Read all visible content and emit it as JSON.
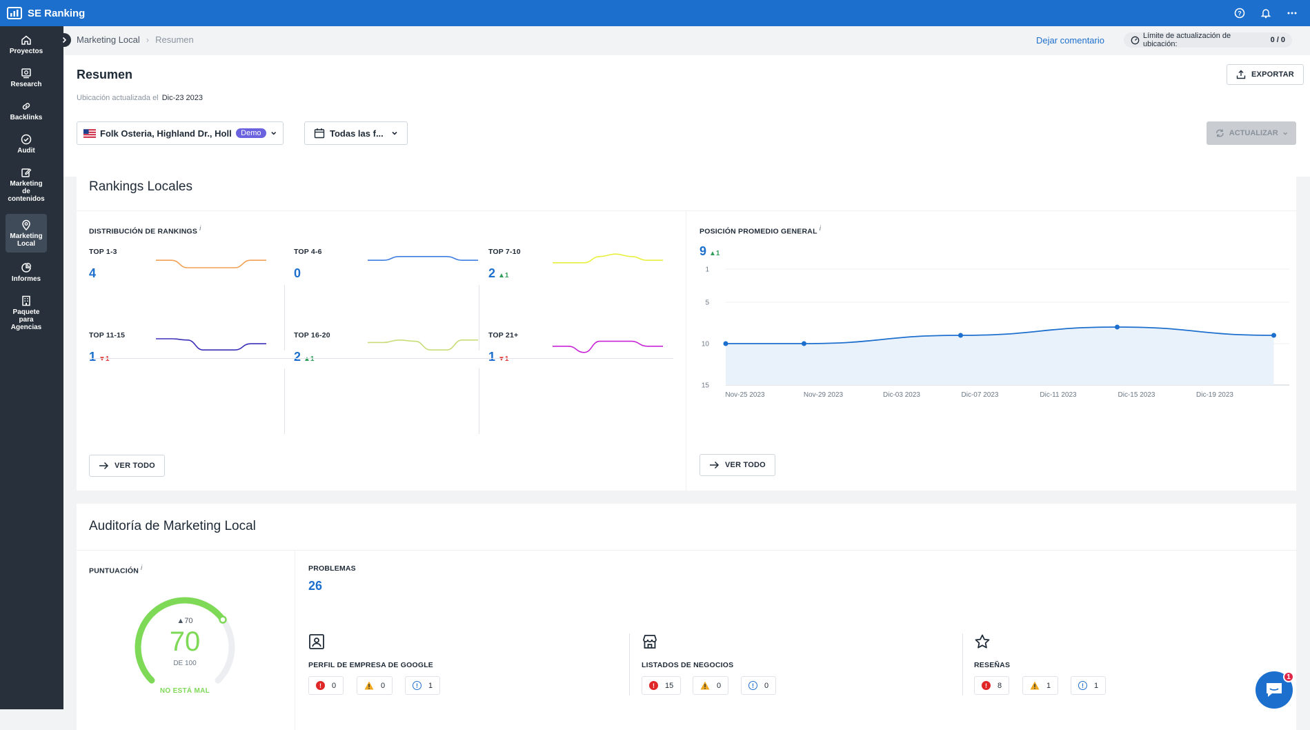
{
  "app": {
    "title": "SE Ranking"
  },
  "sidebar": {
    "items": [
      {
        "label": "Proyectos",
        "icon": "home-icon"
      },
      {
        "label": "Research",
        "icon": "research-icon"
      },
      {
        "label": "Backlinks",
        "icon": "link-icon"
      },
      {
        "label": "Audit",
        "icon": "check-circle-icon"
      },
      {
        "label": "Marketing de contenidos",
        "icon": "edit-icon"
      },
      {
        "label": "Marketing Local",
        "icon": "map-pin-icon",
        "active": true
      },
      {
        "label": "Informes",
        "icon": "pie-chart-icon"
      },
      {
        "label": "Paquete para Agencias",
        "icon": "building-icon"
      }
    ]
  },
  "breadcrumb": {
    "root": "Marketing Local",
    "separator": "›",
    "current": "Resumen"
  },
  "topright": {
    "comment_link": "Dejar comentario",
    "limit_label": "Límite de actualización de ubicación:",
    "limit_value": "0 / 0"
  },
  "header": {
    "title": "Resumen",
    "updated_label": "Ubicación actualizada el",
    "updated_date": "Dic-23 2023",
    "export_label": "EXPORTAR"
  },
  "filters": {
    "location": "Folk Osteria, Highland Dr., Holl...",
    "badge": "Demo",
    "date": "Todas las f...",
    "update_label": "ACTUALIZAR"
  },
  "rankings": {
    "title": "Rankings Locales",
    "dist_label": "DISTRIBUCIÓN DE RANKINGS",
    "info": "i",
    "cells": [
      {
        "label": "TOP 1-3",
        "value": "4",
        "delta": "",
        "dir": "",
        "color": "#f0a050"
      },
      {
        "label": "TOP 4-6",
        "value": "0",
        "delta": "",
        "dir": "",
        "color": "#3d7de0"
      },
      {
        "label": "TOP 7-10",
        "value": "2",
        "delta": "1",
        "dir": "up",
        "color": "#e8f03c"
      },
      {
        "label": "TOP 11-15",
        "value": "1",
        "delta": "1",
        "dir": "down",
        "color": "#3a2fb8"
      },
      {
        "label": "TOP 16-20",
        "value": "2",
        "delta": "1",
        "dir": "up",
        "color": "#c8dc78"
      },
      {
        "label": "TOP 21+",
        "value": "1",
        "delta": "1",
        "dir": "down",
        "color": "#c823d6"
      }
    ],
    "view_all": "VER TODO"
  },
  "avg": {
    "label": "POSICIÓN PROMEDIO GENERAL",
    "info": "i",
    "value": "9",
    "delta": "1",
    "view_all": "VER TODO"
  },
  "chart_data": {
    "type": "line",
    "x": [
      "Nov-25 2023",
      "Nov-29 2023",
      "Dic-03 2023",
      "Dic-07 2023",
      "Dic-11 2023",
      "Dic-15 2023",
      "Dic-19 2023"
    ],
    "yticks": [
      1,
      5,
      10,
      15
    ],
    "ylim": [
      1,
      15
    ],
    "y_reversed": true,
    "series": [
      {
        "points": [
          {
            "x": "Nov-25 2023",
            "y": 10
          },
          {
            "x": "Nov-29 2023",
            "y": 10
          },
          {
            "x": "Dic-07 2023",
            "y": 9
          },
          {
            "x": "Dic-15 2023",
            "y": 8
          },
          {
            "x": "Dic-23 2023",
            "y": 9
          }
        ]
      }
    ],
    "color": "#1d6fce"
  },
  "audit": {
    "title": "Auditoría de Marketing Local",
    "score_label": "PUNTUACIÓN",
    "info": "i",
    "score": "70",
    "score_delta": "70",
    "score_fraction": 0.7,
    "score_of": "DE 100",
    "verdict": "NO ESTÁ MAL",
    "problems_label": "PROBLEMAS",
    "problems_count": "26",
    "groups": [
      {
        "label": "PERFIL DE EMPRESA DE GOOGLE",
        "icon": "profile-icon",
        "errors": "0",
        "warnings": "0",
        "notices": "1"
      },
      {
        "label": "LISTADOS DE NEGOCIOS",
        "icon": "store-icon",
        "errors": "15",
        "warnings": "0",
        "notices": "0"
      },
      {
        "label": "RESEÑAS",
        "icon": "star-icon",
        "errors": "8",
        "warnings": "1",
        "notices": "1"
      }
    ]
  },
  "chat": {
    "badge": "1"
  }
}
